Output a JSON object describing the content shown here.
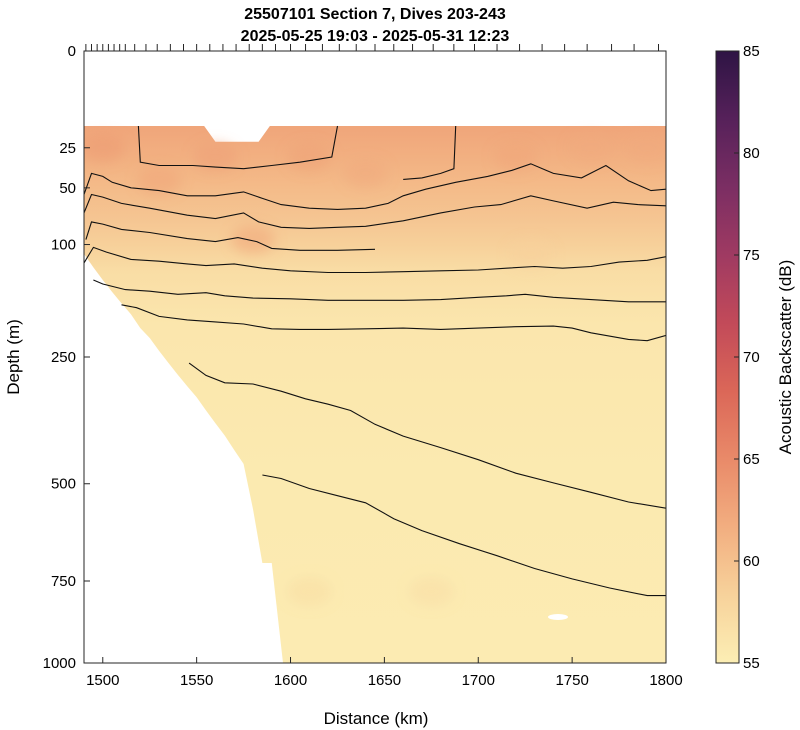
{
  "chart_data": {
    "type": "heatmap",
    "title": [
      "25507101 Section 7, Dives 203-243",
      "2025-05-25 19:03 - 2025-05-31 12:23"
    ],
    "xlabel": "Distance (km)",
    "ylabel": "Depth (m)",
    "xlim": [
      1490,
      1800
    ],
    "ylim": [
      1000,
      0
    ],
    "yscale": "sqrt",
    "xticks": [
      1500,
      1550,
      1600,
      1650,
      1700,
      1750,
      1800
    ],
    "xtick_labels": [
      "1500",
      "1550",
      "1600",
      "1650",
      "1700",
      "1750",
      "1800"
    ],
    "yticks": [
      0,
      25,
      50,
      100,
      250,
      500,
      750,
      1000
    ],
    "ytick_labels": [
      "0",
      "25",
      "50",
      "100",
      "250",
      "500",
      "750",
      "1000"
    ],
    "colorbar": {
      "label": "Acoustic Backscatter (dB)",
      "limits": [
        55,
        85
      ],
      "ticks": [
        55,
        60,
        65,
        70,
        75,
        80,
        85
      ],
      "tick_labels": [
        "55",
        "60",
        "65",
        "70",
        "75",
        "80",
        "85"
      ],
      "colors": [
        "#fceeb4",
        "#f7d29b",
        "#f2ae80",
        "#e98a69",
        "#db6758",
        "#c24a59",
        "#9f3a62",
        "#7b2e63",
        "#56215a",
        "#2e1444"
      ]
    },
    "dive_marker_distances": [
      1491,
      1494,
      1497,
      1500,
      1503,
      1506,
      1509,
      1512,
      1517,
      1523,
      1529,
      1536,
      1543,
      1550,
      1557,
      1564,
      1571,
      1578,
      1585,
      1592,
      1600,
      1608,
      1617,
      1626,
      1635,
      1645,
      1655,
      1665,
      1676,
      1687,
      1698,
      1710,
      1722,
      1734,
      1746,
      1758,
      1771,
      1783,
      1796
    ],
    "data_top_depth": 15,
    "surface_notch": {
      "x": [
        1560,
        1583
      ],
      "depth": 22
    },
    "bottom_profile": [
      [
        1490,
        110
      ],
      [
        1495,
        125
      ],
      [
        1500,
        140
      ],
      [
        1505,
        155
      ],
      [
        1510,
        170
      ],
      [
        1515,
        185
      ],
      [
        1520,
        205
      ],
      [
        1525,
        220
      ],
      [
        1530,
        240
      ],
      [
        1535,
        260
      ],
      [
        1540,
        280
      ],
      [
        1545,
        300
      ],
      [
        1550,
        320
      ],
      [
        1555,
        345
      ],
      [
        1560,
        370
      ],
      [
        1565,
        395
      ],
      [
        1570,
        425
      ],
      [
        1575,
        455
      ],
      [
        1580,
        560
      ],
      [
        1585,
        700
      ],
      [
        1590,
        700
      ],
      [
        1596,
        1000
      ]
    ],
    "backscatter_field": {
      "profile_depths": [
        15,
        30,
        50,
        75,
        100,
        130,
        200,
        500,
        1000
      ],
      "profile_levels_db": [
        62.5,
        61.5,
        60.5,
        59.5,
        58.5,
        57.0,
        56.0,
        55.5,
        55.3
      ],
      "note": "values in dB at each depth"
    },
    "contours": [
      [
        [
          1519,
          15
        ],
        [
          1520,
          33
        ],
        [
          1530,
          35
        ],
        [
          1548,
          35
        ],
        [
          1560,
          36
        ],
        [
          1575,
          37
        ],
        [
          1590,
          35
        ],
        [
          1605,
          33
        ],
        [
          1622,
          30
        ],
        [
          1625,
          15
        ]
      ],
      [
        [
          1688,
          15
        ],
        [
          1687,
          37
        ],
        [
          1680,
          40
        ],
        [
          1670,
          43
        ],
        [
          1660,
          44
        ]
      ],
      [
        [
          1490,
          55
        ],
        [
          1494,
          40
        ],
        [
          1500,
          42
        ],
        [
          1505,
          46
        ],
        [
          1515,
          50
        ],
        [
          1530,
          52
        ],
        [
          1545,
          56
        ],
        [
          1560,
          56
        ],
        [
          1575,
          53
        ],
        [
          1585,
          58
        ],
        [
          1595,
          63
        ],
        [
          1610,
          66
        ],
        [
          1625,
          67
        ],
        [
          1640,
          66
        ],
        [
          1652,
          62
        ],
        [
          1660,
          56
        ],
        [
          1672,
          51
        ],
        [
          1688,
          46
        ],
        [
          1705,
          42
        ],
        [
          1718,
          38
        ],
        [
          1728,
          34
        ],
        [
          1740,
          40
        ],
        [
          1755,
          43
        ],
        [
          1768,
          35
        ],
        [
          1780,
          45
        ],
        [
          1792,
          52
        ],
        [
          1800,
          51
        ]
      ],
      [
        [
          1490,
          70
        ],
        [
          1494,
          55
        ],
        [
          1500,
          57
        ],
        [
          1510,
          62
        ],
        [
          1525,
          66
        ],
        [
          1545,
          72
        ],
        [
          1560,
          75
        ],
        [
          1575,
          70
        ],
        [
          1583,
          78
        ],
        [
          1595,
          83
        ],
        [
          1610,
          84
        ],
        [
          1625,
          83
        ],
        [
          1640,
          82
        ],
        [
          1660,
          77
        ],
        [
          1680,
          70
        ],
        [
          1698,
          65
        ],
        [
          1712,
          63
        ],
        [
          1728,
          56
        ],
        [
          1740,
          60
        ],
        [
          1758,
          66
        ],
        [
          1772,
          61
        ],
        [
          1785,
          63
        ],
        [
          1800,
          64
        ]
      ],
      [
        [
          1491,
          95
        ],
        [
          1494,
          78
        ],
        [
          1500,
          80
        ],
        [
          1510,
          85
        ],
        [
          1525,
          88
        ],
        [
          1545,
          94
        ],
        [
          1560,
          97
        ],
        [
          1572,
          93
        ],
        [
          1582,
          97
        ],
        [
          1590,
          104
        ],
        [
          1605,
          106
        ],
        [
          1625,
          106
        ],
        [
          1645,
          105
        ]
      ],
      [
        [
          1490,
          120
        ],
        [
          1495,
          103
        ],
        [
          1502,
          108
        ],
        [
          1515,
          116
        ],
        [
          1530,
          118
        ],
        [
          1545,
          121
        ],
        [
          1555,
          123
        ],
        [
          1570,
          121
        ],
        [
          1585,
          126
        ],
        [
          1600,
          129
        ],
        [
          1620,
          131
        ],
        [
          1640,
          131
        ],
        [
          1660,
          130
        ],
        [
          1680,
          129
        ],
        [
          1700,
          128
        ],
        [
          1715,
          126
        ],
        [
          1730,
          124
        ],
        [
          1745,
          126
        ],
        [
          1760,
          124
        ],
        [
          1775,
          119
        ],
        [
          1790,
          117
        ],
        [
          1800,
          113
        ]
      ],
      [
        [
          1495,
          140
        ],
        [
          1500,
          145
        ],
        [
          1512,
          152
        ],
        [
          1525,
          154
        ],
        [
          1540,
          158
        ],
        [
          1555,
          156
        ],
        [
          1565,
          160
        ],
        [
          1580,
          163
        ],
        [
          1600,
          164
        ],
        [
          1620,
          166
        ],
        [
          1640,
          166
        ],
        [
          1660,
          166
        ],
        [
          1680,
          165
        ],
        [
          1700,
          162
        ],
        [
          1715,
          160
        ],
        [
          1725,
          158
        ],
        [
          1740,
          162
        ],
        [
          1760,
          165
        ],
        [
          1780,
          168
        ],
        [
          1800,
          168
        ]
      ],
      [
        [
          1510,
          172
        ],
        [
          1518,
          176
        ],
        [
          1530,
          188
        ],
        [
          1545,
          193
        ],
        [
          1560,
          196
        ],
        [
          1575,
          199
        ],
        [
          1590,
          206
        ],
        [
          1605,
          207
        ],
        [
          1620,
          207
        ],
        [
          1640,
          206
        ],
        [
          1660,
          205
        ],
        [
          1680,
          207
        ],
        [
          1700,
          205
        ],
        [
          1720,
          203
        ],
        [
          1740,
          202
        ],
        [
          1750,
          205
        ],
        [
          1760,
          212
        ],
        [
          1780,
          222
        ],
        [
          1790,
          224
        ],
        [
          1800,
          216
        ]
      ],
      [
        [
          1546,
          260
        ],
        [
          1555,
          281
        ],
        [
          1565,
          294
        ],
        [
          1580,
          296
        ],
        [
          1595,
          309
        ],
        [
          1608,
          323
        ],
        [
          1620,
          333
        ],
        [
          1632,
          345
        ],
        [
          1645,
          372
        ],
        [
          1660,
          396
        ],
        [
          1680,
          420
        ],
        [
          1700,
          446
        ],
        [
          1720,
          476
        ],
        [
          1740,
          498
        ],
        [
          1760,
          520
        ],
        [
          1780,
          543
        ],
        [
          1800,
          558
        ]
      ],
      [
        [
          1585,
          480
        ],
        [
          1595,
          488
        ],
        [
          1610,
          511
        ],
        [
          1625,
          528
        ],
        [
          1640,
          545
        ],
        [
          1655,
          584
        ],
        [
          1670,
          614
        ],
        [
          1690,
          648
        ],
        [
          1710,
          680
        ],
        [
          1730,
          715
        ],
        [
          1750,
          744
        ],
        [
          1770,
          770
        ],
        [
          1790,
          792
        ],
        [
          1800,
          792
        ]
      ]
    ]
  }
}
